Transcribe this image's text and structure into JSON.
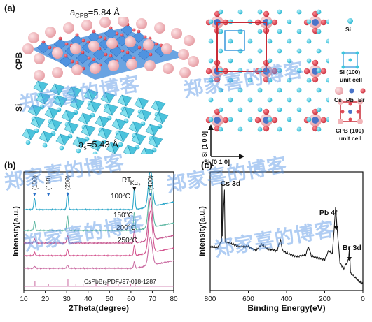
{
  "panel_a": {
    "label": "(a)",
    "a_cpb_main": "a",
    "a_cpb_sub": "CPB",
    "a_cpb_value": "=5.84 Å",
    "as_main": "a",
    "as_sub": "s",
    "as_value": "=5.43 Å",
    "cpb_side_label": "CPB",
    "si_side_label": "Si",
    "legend_si": "Si",
    "legend_si_cell_line1": "Si (100)",
    "legend_si_cell_line2": "unit cell",
    "legend_cs": "Cs",
    "legend_pb": "Pb",
    "legend_br": "Br",
    "legend_cpb_cell_line1": "CPB (100)",
    "legend_cpb_cell_line2": "unit cell",
    "axis_vertical": "Si [1 0 0]",
    "axis_horizontal": "Si [0 1 0]",
    "colors": {
      "si": "#3fc6dd",
      "cs": "#f2b4b8",
      "pb": "#4a74c9",
      "br": "#e04b58",
      "octahedra": "#3a86d8",
      "cell_box": "#c82a35"
    }
  },
  "panel_b": {
    "label": "(b)",
    "xlabel": "2Theta(degree)",
    "ylabel": "Intensity(a.u.)",
    "peak_100": "(100)",
    "peak_110": "(110)",
    "peak_200": "(200)",
    "peak_400": "(400)",
    "ka_main": "Kα",
    "ka_sub": "2",
    "ref_card": "CsPbBr",
    "ref_card_sub": "3",
    "ref_card_tail": "PDF#97-018-1287"
  },
  "panel_c": {
    "label": "(c)",
    "xlabel": "Binding Energy(eV)",
    "ylabel": "Intensity(a.u.)",
    "cs3d": "Cs 3d",
    "pb4f": "Pb 4f",
    "br3d": "Br 3d"
  },
  "watermark": "郑家喜的博客",
  "chart_data": [
    {
      "type": "line",
      "title": "",
      "xlabel": "2Theta(degree)",
      "ylabel": "Intensity(a.u.)",
      "xlim": [
        10,
        80
      ],
      "xticks": [
        10,
        20,
        30,
        40,
        50,
        60,
        70,
        80
      ],
      "y_ticks_shown": false,
      "series": [
        {
          "name": "RT",
          "color": "#2aa6c9",
          "peaks": [
            [
              15.0,
              0.3
            ],
            [
              30.4,
              0.45
            ],
            [
              61.6,
              0.55
            ],
            [
              69.1,
              1.0
            ]
          ]
        },
        {
          "name": "100°C",
          "color": "#5fb8a3",
          "peaks": [
            [
              15.0,
              0.22
            ],
            [
              30.4,
              0.35
            ],
            [
              61.6,
              0.45
            ],
            [
              69.1,
              1.0
            ]
          ]
        },
        {
          "name": "150°C",
          "color": "#c6578f",
          "peaks": [
            [
              15.0,
              0.1
            ],
            [
              30.4,
              0.18
            ],
            [
              61.6,
              0.3
            ],
            [
              69.1,
              1.0
            ]
          ]
        },
        {
          "name": "200°C",
          "color": "#d4558f",
          "peaks": [
            [
              15.0,
              0.08
            ],
            [
              30.4,
              0.15
            ],
            [
              61.6,
              0.25
            ],
            [
              69.1,
              1.0
            ]
          ]
        },
        {
          "name": "250°C",
          "color": "#c969a0",
          "peaks": [
            [
              15.0,
              0.06
            ],
            [
              30.4,
              0.1
            ],
            [
              61.6,
              0.2
            ],
            [
              69.1,
              0.9
            ]
          ]
        }
      ],
      "reference_lines": [
        15.2,
        21.5,
        30.6,
        34.3,
        37.7,
        43.7,
        49.2,
        54.1,
        59.9,
        62.0
      ]
    },
    {
      "type": "line",
      "title": "",
      "xlabel": "Binding Energy(eV)",
      "ylabel": "Intensity(a.u.)",
      "xlim": [
        800,
        0
      ],
      "xticks": [
        800,
        600,
        400,
        200,
        0
      ],
      "y_ticks_shown": false,
      "series": [
        {
          "name": "",
          "color": "#111111",
          "points": [
            [
              800,
              0.4
            ],
            [
              760,
              0.39
            ],
            [
              740,
              0.45
            ],
            [
              738,
              0.98
            ],
            [
              735,
              0.5
            ],
            [
              725,
              0.92
            ],
            [
              722,
              0.44
            ],
            [
              700,
              0.43
            ],
            [
              650,
              0.4
            ],
            [
              600,
              0.4
            ],
            [
              560,
              0.36
            ],
            [
              532,
              0.42
            ],
            [
              500,
              0.38
            ],
            [
              450,
              0.36
            ],
            [
              432,
              0.46
            ],
            [
              420,
              0.36
            ],
            [
              400,
              0.34
            ],
            [
              350,
              0.31
            ],
            [
              300,
              0.32
            ],
            [
              285,
              0.4
            ],
            [
              270,
              0.31
            ],
            [
              240,
              0.3
            ],
            [
              200,
              0.28
            ],
            [
              180,
              0.36
            ],
            [
              160,
              0.33
            ],
            [
              143,
              0.75
            ],
            [
              138,
              0.63
            ],
            [
              120,
              0.25
            ],
            [
              100,
              0.2
            ],
            [
              75,
              0.28
            ],
            [
              70,
              0.4
            ],
            [
              65,
              0.16
            ],
            [
              40,
              0.12
            ],
            [
              20,
              0.08
            ],
            [
              0,
              0.06
            ]
          ]
        }
      ],
      "annotations": [
        {
          "text": "Cs 3d",
          "x": 724
        },
        {
          "text": "Pb 4f",
          "x": 140
        },
        {
          "text": "Br 3d",
          "x": 70
        }
      ]
    }
  ]
}
